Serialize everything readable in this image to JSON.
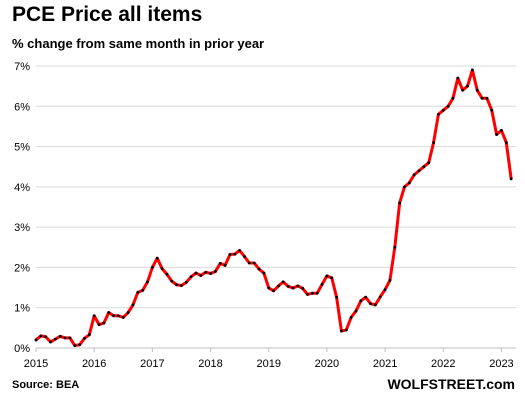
{
  "chart_data": {
    "type": "line",
    "title": "PCE Price all items",
    "subtitle": "% change from same month in prior year",
    "source": "Source: BEA",
    "brand": "WOLFSTREET.com",
    "ylim": [
      0,
      7
    ],
    "xlim": [
      2015,
      2023.25
    ],
    "yticks": [
      0,
      1,
      2,
      3,
      4,
      5,
      6,
      7
    ],
    "ytick_labels": [
      "0%",
      "1%",
      "2%",
      "3%",
      "4%",
      "5%",
      "6%",
      "7%"
    ],
    "xticks": [
      2015,
      2016,
      2017,
      2018,
      2019,
      2020,
      2021,
      2022,
      2023
    ],
    "xtick_labels": [
      "2015",
      "2016",
      "2017",
      "2018",
      "2019",
      "2020",
      "2021",
      "2022",
      "2023"
    ],
    "grid": "horizontal",
    "series": [
      {
        "color": "#ff0000",
        "x_start": "2015-01",
        "values": [
          0.2,
          0.3,
          0.28,
          0.15,
          0.22,
          0.29,
          0.25,
          0.25,
          0.06,
          0.08,
          0.24,
          0.33,
          0.8,
          0.58,
          0.62,
          0.88,
          0.8,
          0.8,
          0.76,
          0.88,
          1.07,
          1.38,
          1.43,
          1.64,
          2.0,
          2.23,
          1.97,
          1.83,
          1.66,
          1.57,
          1.55,
          1.63,
          1.77,
          1.86,
          1.8,
          1.88,
          1.85,
          1.9,
          2.1,
          2.05,
          2.32,
          2.33,
          2.42,
          2.27,
          2.11,
          2.11,
          1.96,
          1.86,
          1.49,
          1.42,
          1.54,
          1.64,
          1.53,
          1.49,
          1.54,
          1.48,
          1.33,
          1.36,
          1.36,
          1.58,
          1.79,
          1.74,
          1.26,
          0.42,
          0.45,
          0.76,
          0.92,
          1.17,
          1.26,
          1.1,
          1.07,
          1.27,
          1.45,
          1.68,
          2.5,
          3.6,
          4.0,
          4.1,
          4.3,
          4.4,
          4.5,
          4.6,
          5.1,
          5.8,
          5.9,
          6.0,
          6.2,
          6.7,
          6.4,
          6.5,
          6.9,
          6.4,
          6.2,
          6.2,
          5.9,
          5.3,
          5.4,
          5.1,
          4.2
        ]
      }
    ]
  }
}
